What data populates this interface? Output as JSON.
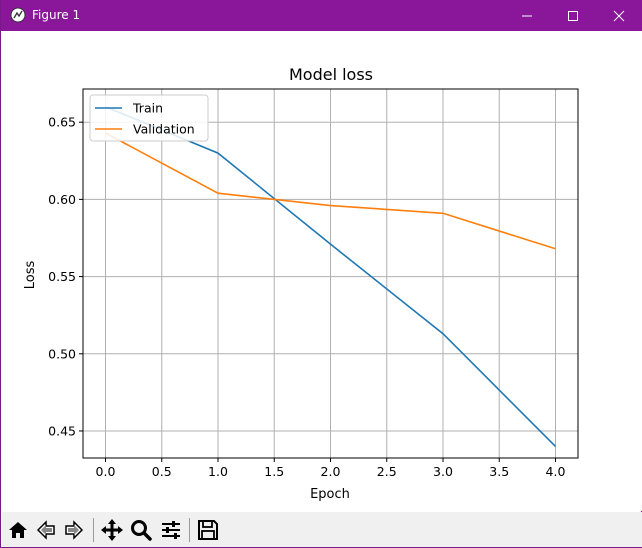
{
  "window": {
    "title": "Figure 1",
    "title_bar_color": "#8a179a"
  },
  "icons": {
    "app": "figure-app-icon",
    "minimize": "minimize-icon",
    "maximize": "maximize-icon",
    "close": "close-icon",
    "home": "home-icon",
    "back": "back-arrow-icon",
    "forward": "forward-arrow-icon",
    "pan": "pan-move-icon",
    "zoom": "zoom-magnifier-icon",
    "configure": "configure-subplots-icon",
    "save": "save-floppy-icon"
  },
  "chart_data": {
    "type": "line",
    "title": "Model loss",
    "xlabel": "Epoch",
    "ylabel": "Loss",
    "x": [
      0,
      1,
      2,
      3,
      4
    ],
    "series": [
      {
        "name": "Train",
        "color": "#1f77b4",
        "values": [
          0.66,
          0.63,
          0.571,
          0.513,
          0.44
        ]
      },
      {
        "name": "Validation",
        "color": "#ff7f0e",
        "values": [
          0.643,
          0.604,
          0.596,
          0.591,
          0.568
        ]
      }
    ],
    "xlim": [
      -0.2,
      4.2
    ],
    "ylim": [
      0.4325,
      0.6715
    ],
    "xticks": [
      "0.0",
      "0.5",
      "1.0",
      "1.5",
      "2.0",
      "2.5",
      "3.0",
      "3.5",
      "4.0"
    ],
    "xtick_values": [
      0,
      0.5,
      1,
      1.5,
      2,
      2.5,
      3,
      3.5,
      4
    ],
    "yticks": [
      "0.45",
      "0.50",
      "0.55",
      "0.60",
      "0.65"
    ],
    "ytick_values": [
      0.45,
      0.5,
      0.55,
      0.6,
      0.65
    ],
    "grid": true,
    "legend_position": "upper-left"
  }
}
